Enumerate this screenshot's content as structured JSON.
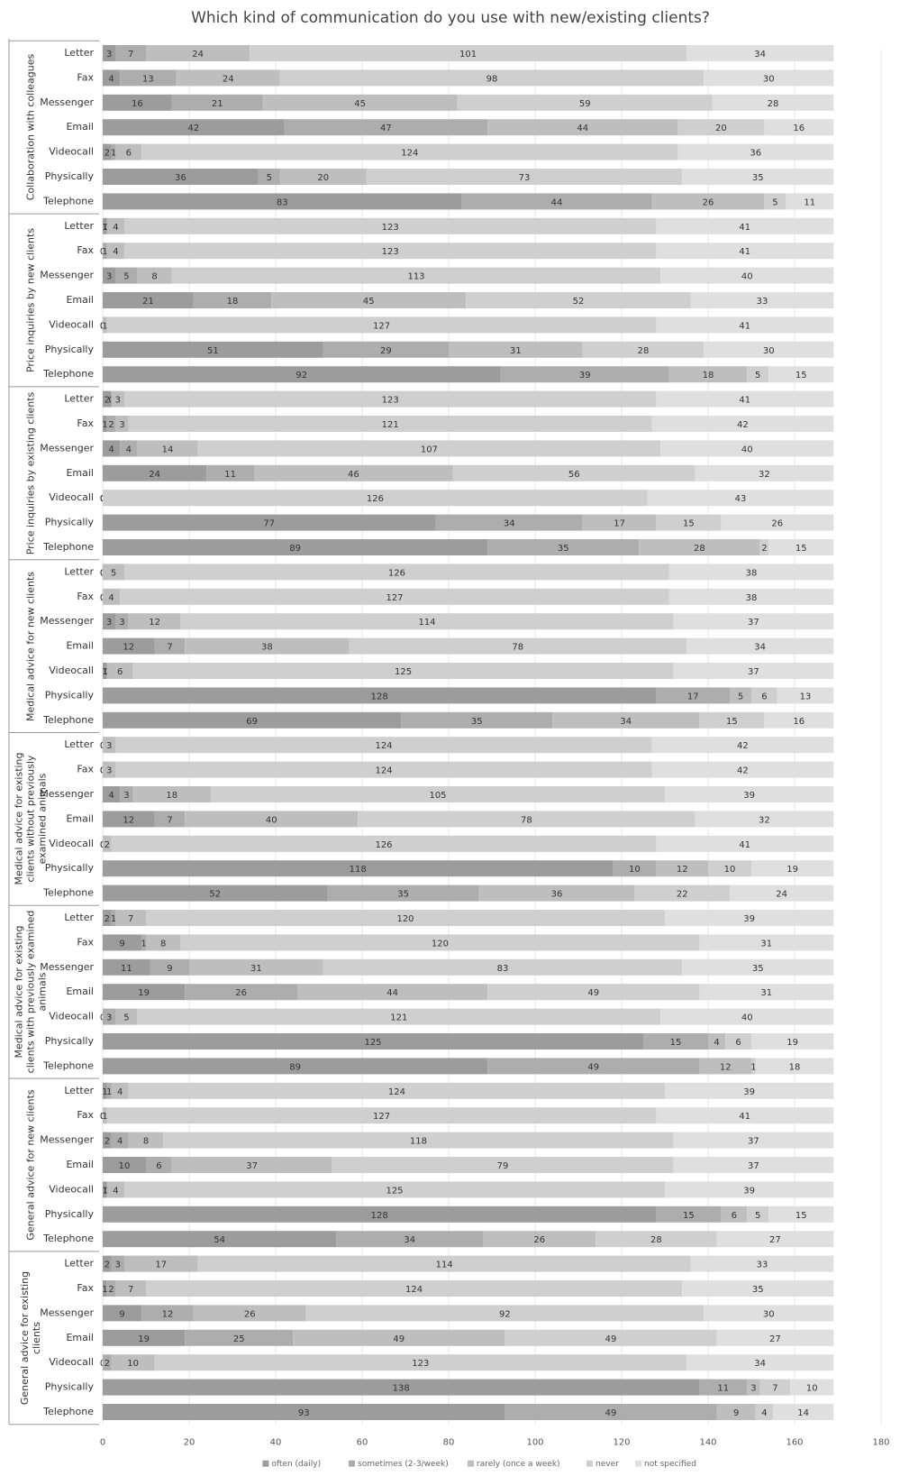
{
  "chart_data": {
    "type": "stacked-bar",
    "orientation": "horizontal",
    "title": "Which kind of communication do you use with new/existing clients?",
    "groups": [
      {
        "name": "Collaboration with colleagues",
        "categories": [
          "Letter",
          "Fax",
          "Messenger",
          "Email",
          "Videocall",
          "Physically",
          "Telephone"
        ]
      },
      {
        "name": "Price inquiries by new clients",
        "categories": [
          "Letter",
          "Fax",
          "Messenger",
          "Email",
          "Videocall",
          "Physically",
          "Telephone"
        ]
      },
      {
        "name": "Price inquiries by existing clients",
        "categories": [
          "Letter",
          "Fax",
          "Messenger",
          "Email",
          "Videocall",
          "Physically",
          "Telephone"
        ]
      },
      {
        "name": "Medical advice for new clients",
        "categories": [
          "Letter",
          "Fax",
          "Messenger",
          "Email",
          "Videocall",
          "Physically",
          "Telephone"
        ]
      },
      {
        "name": "Medical advice for existing clients without previously examined animals",
        "categories": [
          "Letter",
          "Fax",
          "Messenger",
          "Email",
          "Videocall",
          "Physically",
          "Telephone"
        ]
      },
      {
        "name": "Medical advice for existing clients with previously examined animals",
        "categories": [
          "Letter",
          "Fax",
          "Messenger",
          "Email",
          "Videocall",
          "Physically",
          "Telephone"
        ]
      },
      {
        "name": "General advice for new clients",
        "categories": [
          "Letter",
          "Fax",
          "Messenger",
          "Email",
          "Videocall",
          "Physically",
          "Telephone"
        ]
      },
      {
        "name": "General advice for existing clients",
        "categories": [
          "Letter",
          "Fax",
          "Messenger",
          "Email",
          "Videocall",
          "Physically",
          "Telephone"
        ]
      }
    ],
    "series": [
      {
        "name": "often (daily)",
        "color": "#9c9c9c",
        "values": [
          [
            3,
            4,
            16,
            42,
            2,
            36,
            83
          ],
          [
            1,
            0,
            3,
            21,
            0,
            51,
            92
          ],
          [
            2,
            1,
            4,
            24,
            0,
            77,
            89
          ],
          [
            0,
            0,
            3,
            12,
            1,
            128,
            69
          ],
          [
            0,
            0,
            4,
            12,
            0,
            118,
            52
          ],
          [
            2,
            9,
            11,
            19,
            0,
            125,
            89
          ],
          [
            1,
            0,
            2,
            10,
            1,
            128,
            54
          ],
          [
            2,
            1,
            9,
            19,
            0,
            138,
            93
          ]
        ]
      },
      {
        "name": "sometimes (2-3/week)",
        "color": "#adadad",
        "values": [
          [
            7,
            13,
            21,
            47,
            1,
            5,
            44
          ],
          [
            0,
            1,
            5,
            18,
            0,
            29,
            39
          ],
          [
            0,
            2,
            4,
            11,
            0,
            34,
            35
          ],
          [
            0,
            0,
            3,
            7,
            0,
            17,
            35
          ],
          [
            0,
            0,
            3,
            7,
            0,
            10,
            35
          ],
          [
            1,
            1,
            9,
            26,
            3,
            15,
            49
          ],
          [
            1,
            0,
            4,
            6,
            0,
            15,
            34
          ],
          [
            3,
            2,
            12,
            25,
            2,
            11,
            49
          ]
        ]
      },
      {
        "name": "rarely (once a week)",
        "color": "#bebebe",
        "values": [
          [
            24,
            24,
            45,
            44,
            6,
            20,
            26
          ],
          [
            4,
            4,
            8,
            45,
            1,
            31,
            18
          ],
          [
            3,
            3,
            14,
            46,
            0,
            17,
            28
          ],
          [
            5,
            4,
            12,
            38,
            6,
            5,
            34
          ],
          [
            3,
            3,
            18,
            40,
            2,
            12,
            36
          ],
          [
            7,
            8,
            31,
            44,
            5,
            4,
            12
          ],
          [
            4,
            1,
            8,
            37,
            4,
            6,
            26
          ],
          [
            17,
            7,
            26,
            49,
            10,
            3,
            9
          ]
        ]
      },
      {
        "name": "never",
        "color": "#cfcfcf",
        "values": [
          [
            101,
            98,
            59,
            20,
            124,
            73,
            5
          ],
          [
            123,
            123,
            113,
            52,
            127,
            28,
            5
          ],
          [
            123,
            121,
            107,
            56,
            126,
            15,
            2
          ],
          [
            126,
            127,
            114,
            78,
            125,
            6,
            15
          ],
          [
            124,
            124,
            105,
            78,
            126,
            10,
            22
          ],
          [
            120,
            120,
            83,
            49,
            121,
            6,
            1
          ],
          [
            124,
            127,
            118,
            79,
            125,
            5,
            28
          ],
          [
            114,
            124,
            92,
            49,
            123,
            7,
            4
          ]
        ]
      },
      {
        "name": "not specified",
        "color": "#dfdfdf",
        "values": [
          [
            34,
            30,
            28,
            16,
            36,
            35,
            11
          ],
          [
            41,
            41,
            40,
            33,
            41,
            30,
            15
          ],
          [
            41,
            42,
            40,
            32,
            43,
            26,
            15
          ],
          [
            38,
            38,
            37,
            34,
            37,
            13,
            16
          ],
          [
            42,
            42,
            39,
            32,
            41,
            19,
            24
          ],
          [
            39,
            31,
            35,
            31,
            40,
            19,
            18
          ],
          [
            39,
            41,
            37,
            37,
            39,
            15,
            27
          ],
          [
            33,
            35,
            30,
            27,
            34,
            10,
            14
          ]
        ]
      }
    ],
    "xlim": [
      0,
      180
    ],
    "xticks": [
      0,
      20,
      40,
      60,
      80,
      100,
      120,
      140,
      160,
      180
    ],
    "grid": true,
    "legend": "bottom"
  }
}
